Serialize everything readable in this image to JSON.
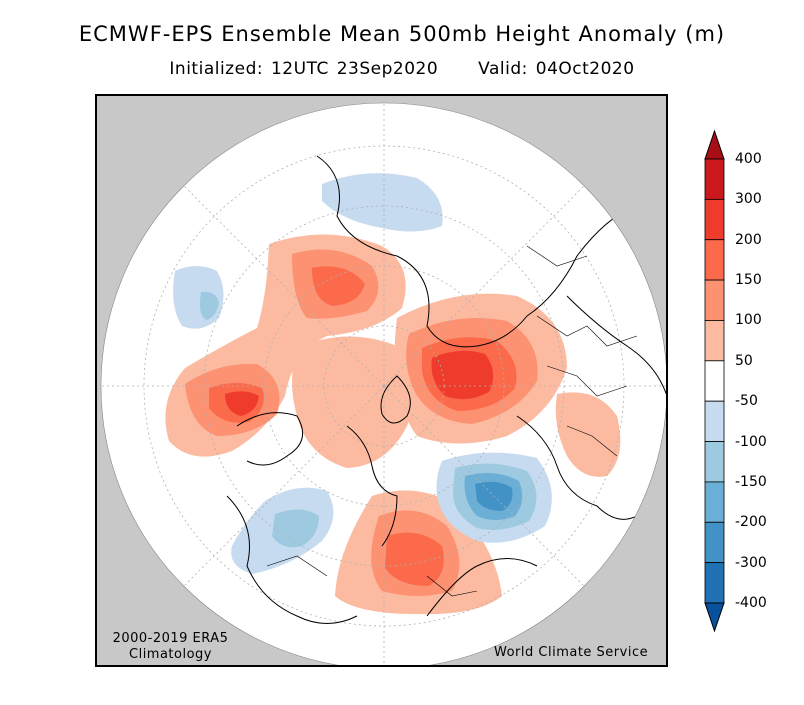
{
  "title": "ECMWF-EPS Ensemble Mean 500mb Height Anomaly (m)",
  "subtitle": {
    "initialized": "Initialized: 12UTC 23Sep2020",
    "valid": "Valid: 04Oct2020"
  },
  "climatology_note": {
    "line1": "2000-2019 ERA5",
    "line2": "Climatology"
  },
  "credit": "World Climate Service",
  "colorbar": {
    "labels": [
      "400",
      "300",
      "200",
      "150",
      "100",
      "50",
      "-50",
      "-100",
      "-150",
      "-200",
      "-300",
      "-400"
    ],
    "colors": [
      "#a50f15",
      "#cb181d",
      "#ef3b2c",
      "#fb6a4a",
      "#fc9272",
      "#fcbba1",
      "#ffffff",
      "#c6dbef",
      "#9ecae1",
      "#6baed6",
      "#4292c6",
      "#2171b5",
      "#08519c"
    ]
  }
}
